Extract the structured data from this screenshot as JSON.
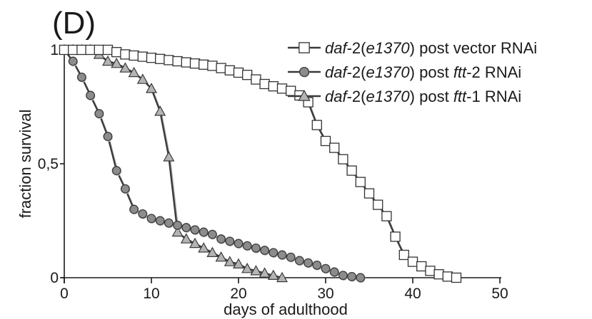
{
  "chart_data": {
    "type": "line",
    "panel_label": "(D)",
    "xlabel": "days of adulthood",
    "ylabel": "fraction survival",
    "xlim": [
      0,
      50
    ],
    "ylim": [
      0,
      1
    ],
    "xticks": [
      {
        "v": 0,
        "label": "0"
      },
      {
        "v": 10,
        "label": "10"
      },
      {
        "v": 20,
        "label": "20"
      },
      {
        "v": 30,
        "label": "30"
      },
      {
        "v": 40,
        "label": "40"
      },
      {
        "v": 50,
        "label": "50"
      }
    ],
    "yticks": [
      {
        "v": 0,
        "label": "0"
      },
      {
        "v": 0.5,
        "label": "0,5"
      },
      {
        "v": 1,
        "label": "1"
      }
    ],
    "grid": false,
    "legend_position": "top-right",
    "series": [
      {
        "marker": "square",
        "fill": "#ffffff",
        "legend": [
          {
            "text": "daf",
            "italic": true
          },
          {
            "text": "-2(",
            "italic": false
          },
          {
            "text": "e1370",
            "italic": true
          },
          {
            "text": ") post vector RNAi",
            "italic": false
          }
        ],
        "points": [
          [
            0,
            1
          ],
          [
            1,
            1
          ],
          [
            2,
            1
          ],
          [
            3,
            1
          ],
          [
            4,
            1
          ],
          [
            5,
            1
          ],
          [
            6,
            0.99
          ],
          [
            7,
            0.98
          ],
          [
            8,
            0.975
          ],
          [
            9,
            0.97
          ],
          [
            10,
            0.965
          ],
          [
            11,
            0.96
          ],
          [
            12,
            0.955
          ],
          [
            13,
            0.95
          ],
          [
            14,
            0.945
          ],
          [
            15,
            0.94
          ],
          [
            16,
            0.935
          ],
          [
            17,
            0.93
          ],
          [
            18,
            0.92
          ],
          [
            19,
            0.91
          ],
          [
            20,
            0.9
          ],
          [
            21,
            0.89
          ],
          [
            22,
            0.87
          ],
          [
            23,
            0.85
          ],
          [
            24,
            0.84
          ],
          [
            25,
            0.83
          ],
          [
            26,
            0.82
          ],
          [
            27,
            0.8
          ],
          [
            28,
            0.77
          ],
          [
            29,
            0.67
          ],
          [
            30,
            0.6
          ],
          [
            31,
            0.57
          ],
          [
            32,
            0.52
          ],
          [
            33,
            0.47
          ],
          [
            34,
            0.42
          ],
          [
            35,
            0.37
          ],
          [
            36,
            0.32
          ],
          [
            37,
            0.27
          ],
          [
            38,
            0.18
          ],
          [
            39,
            0.1
          ],
          [
            40,
            0.07
          ],
          [
            41,
            0.05
          ],
          [
            42,
            0.03
          ],
          [
            43,
            0.015
          ],
          [
            44,
            0.005
          ],
          [
            45,
            0.0
          ]
        ]
      },
      {
        "marker": "circle",
        "fill": "#8c8c8c",
        "legend": [
          {
            "text": "daf",
            "italic": true
          },
          {
            "text": "-2(",
            "italic": false
          },
          {
            "text": "e1370",
            "italic": true
          },
          {
            "text": ") post ",
            "italic": false
          },
          {
            "text": "ftt",
            "italic": true
          },
          {
            "text": "-2 RNAi",
            "italic": false
          }
        ],
        "points": [
          [
            0,
            1
          ],
          [
            1,
            0.95
          ],
          [
            2,
            0.88
          ],
          [
            3,
            0.8
          ],
          [
            4,
            0.72
          ],
          [
            5,
            0.62
          ],
          [
            6,
            0.47
          ],
          [
            7,
            0.39
          ],
          [
            8,
            0.3
          ],
          [
            9,
            0.28
          ],
          [
            10,
            0.26
          ],
          [
            11,
            0.25
          ],
          [
            12,
            0.24
          ],
          [
            13,
            0.23
          ],
          [
            14,
            0.22
          ],
          [
            15,
            0.21
          ],
          [
            16,
            0.2
          ],
          [
            17,
            0.19
          ],
          [
            18,
            0.17
          ],
          [
            19,
            0.16
          ],
          [
            20,
            0.15
          ],
          [
            21,
            0.14
          ],
          [
            22,
            0.13
          ],
          [
            23,
            0.12
          ],
          [
            24,
            0.11
          ],
          [
            25,
            0.1
          ],
          [
            26,
            0.09
          ],
          [
            27,
            0.075
          ],
          [
            28,
            0.065
          ],
          [
            29,
            0.055
          ],
          [
            30,
            0.04
          ],
          [
            31,
            0.025
          ],
          [
            32,
            0.01
          ],
          [
            33,
            0.005
          ],
          [
            34,
            0.0
          ]
        ]
      },
      {
        "marker": "triangle",
        "fill": "#b4b4b4",
        "legend": [
          {
            "text": "daf",
            "italic": true
          },
          {
            "text": "-2(",
            "italic": false
          },
          {
            "text": "e1370",
            "italic": true
          },
          {
            "text": ") post ",
            "italic": false
          },
          {
            "text": "ftt",
            "italic": true
          },
          {
            "text": "-1 RNAi",
            "italic": false
          }
        ],
        "points": [
          [
            0,
            1
          ],
          [
            1,
            1
          ],
          [
            2,
            1
          ],
          [
            3,
            1
          ],
          [
            4,
            0.98
          ],
          [
            5,
            0.95
          ],
          [
            6,
            0.94
          ],
          [
            7,
            0.92
          ],
          [
            8,
            0.9
          ],
          [
            9,
            0.87
          ],
          [
            10,
            0.83
          ],
          [
            11,
            0.73
          ],
          [
            12,
            0.53
          ],
          [
            13,
            0.2
          ],
          [
            14,
            0.17
          ],
          [
            15,
            0.15
          ],
          [
            16,
            0.13
          ],
          [
            17,
            0.11
          ],
          [
            18,
            0.09
          ],
          [
            19,
            0.07
          ],
          [
            20,
            0.06
          ],
          [
            21,
            0.04
          ],
          [
            22,
            0.03
          ],
          [
            23,
            0.02
          ],
          [
            24,
            0.01
          ],
          [
            25,
            0.0
          ]
        ]
      }
    ]
  }
}
